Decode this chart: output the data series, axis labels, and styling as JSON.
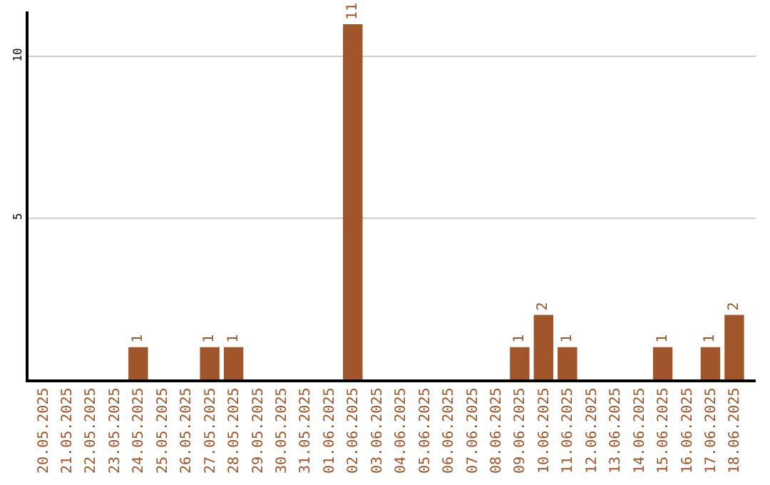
{
  "chart_data": {
    "type": "bar",
    "categories": [
      "20.05.2025",
      "21.05.2025",
      "22.05.2025",
      "23.05.2025",
      "24.05.2025",
      "25.05.2025",
      "26.05.2025",
      "27.05.2025",
      "28.05.2025",
      "29.05.2025",
      "30.05.2025",
      "31.05.2025",
      "01.06.2025",
      "02.06.2025",
      "03.06.2025",
      "04.06.2025",
      "05.06.2025",
      "06.06.2025",
      "07.06.2025",
      "08.06.2025",
      "09.06.2025",
      "10.06.2025",
      "11.06.2025",
      "12.06.2025",
      "13.06.2025",
      "14.06.2025",
      "15.06.2025",
      "16.06.2025",
      "17.06.2025",
      "18.06.2025"
    ],
    "values": [
      0,
      0,
      0,
      0,
      1,
      0,
      0,
      1,
      1,
      0,
      0,
      0,
      0,
      11,
      0,
      0,
      0,
      0,
      0,
      0,
      1,
      2,
      1,
      0,
      0,
      0,
      1,
      0,
      1,
      2
    ],
    "value_labels": [
      null,
      null,
      null,
      null,
      "1",
      null,
      null,
      "1",
      "1",
      null,
      null,
      null,
      null,
      "11",
      null,
      null,
      null,
      null,
      null,
      null,
      "1",
      "2",
      "1",
      null,
      null,
      null,
      "1",
      null,
      "1",
      "2"
    ],
    "color": "#a0562a",
    "ylim": [
      0,
      11.4
    ],
    "yticks": [
      5,
      10
    ],
    "grid": "y"
  }
}
